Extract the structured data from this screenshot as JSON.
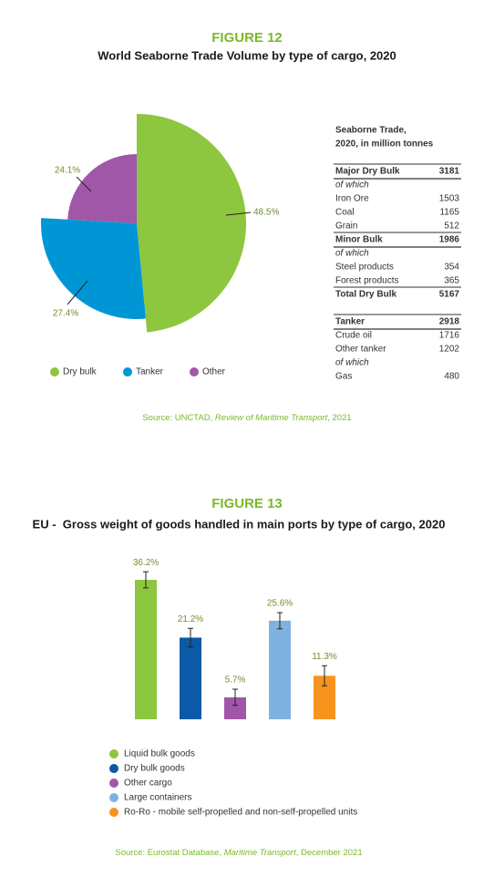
{
  "chart_data": [
    {
      "type": "pie",
      "figure": "FIGURE 12",
      "title": "World Seaborne Trade Volume by type of cargo, 2020",
      "categories": [
        "Dry bulk",
        "Tanker",
        "Other"
      ],
      "values": [
        48.5,
        27.4,
        24.1
      ],
      "value_labels": [
        "48.5%",
        "27.4%",
        "24.1%"
      ],
      "colors": [
        "#8dc63f",
        "#0096d6",
        "#a157a8"
      ],
      "source": [
        "Source: UNCTAD, ",
        "Review of Maritime Transport",
        ", 2021"
      ]
    },
    {
      "type": "bar",
      "figure": "FIGURE 13",
      "title": "EU -  Gross weight of goods handled in main ports by type of cargo, 2020",
      "categories": [
        "Liquid bulk goods",
        "Dry bulk goods",
        "Other cargo",
        "Large containers",
        "Ro-Ro - mobile self-propelled and non-self-propelled units"
      ],
      "values": [
        36.2,
        21.2,
        5.7,
        25.6,
        11.3
      ],
      "value_labels": [
        "36.2%",
        "21.2%",
        "5.7%",
        "25.6%",
        "11.3%"
      ],
      "errors": [
        2.1,
        2.4,
        2.1,
        2.1,
        2.6
      ],
      "colors": [
        "#8dc63f",
        "#0a5aa8",
        "#a157a8",
        "#7fb2e0",
        "#f7941d"
      ],
      "ylim": [
        0,
        40
      ],
      "source": [
        "Source: Eurostat Database, ",
        "Maritime Transport",
        ", December 2021"
      ]
    }
  ],
  "table": {
    "title_lines": [
      "Seaborne Trade,",
      "2020, in million tonnes"
    ],
    "rows": [
      [
        "Major Dry Bulk",
        3181
      ],
      [
        "of which"
      ],
      [
        "Iron Ore",
        1503
      ],
      [
        "Coal",
        1165
      ],
      [
        "Grain",
        512
      ],
      [
        "Minor Bulk",
        1986
      ],
      [
        "of which"
      ],
      [
        "Steel products",
        354
      ],
      [
        "Forest products",
        365
      ],
      [
        "Total Dry Bulk",
        5167
      ],
      [
        "Tanker",
        2918
      ],
      [
        "Crude oil",
        1716
      ],
      [
        "Other tanker",
        1202
      ],
      [
        "of which"
      ],
      [
        "Gas",
        480
      ]
    ]
  }
}
